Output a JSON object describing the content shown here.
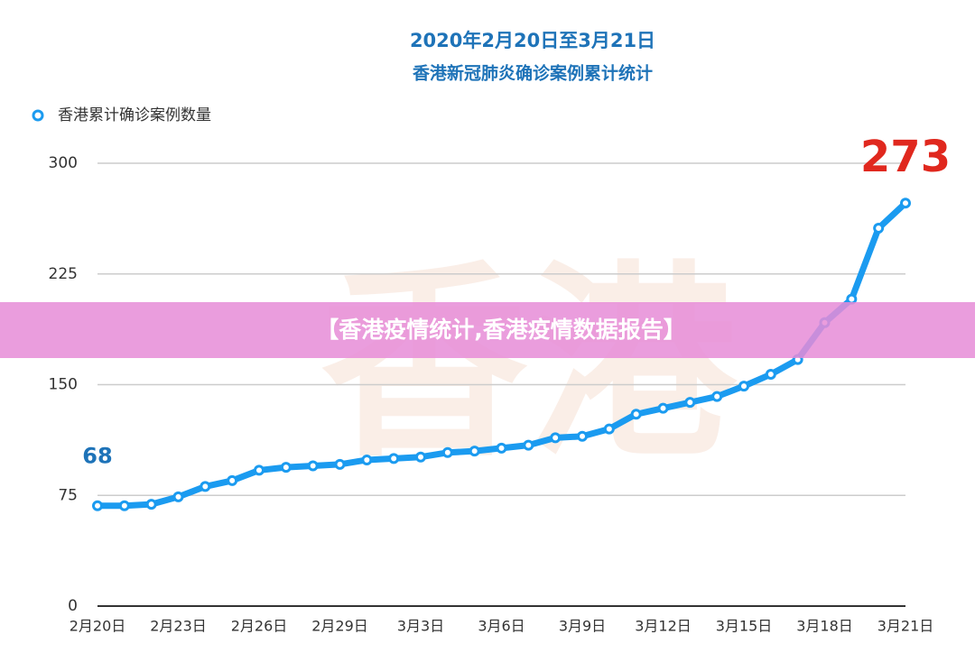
{
  "chart_data": {
    "type": "line",
    "title": "2020年2月20日至3月21日",
    "subtitle": "香港新冠肺炎确诊案例累计统计",
    "watermark": "香港",
    "categories": [
      "2月20日",
      null,
      null,
      "2月23日",
      null,
      null,
      "2月26日",
      null,
      null,
      "2月29日",
      null,
      null,
      "3月3日",
      null,
      null,
      "3月6日",
      null,
      null,
      "3月9日",
      null,
      null,
      "3月12日",
      null,
      null,
      "3月15日",
      null,
      null,
      "3月18日",
      null,
      null,
      "3月21日"
    ],
    "series": [
      {
        "name": "香港累计确诊案例数量",
        "color": "#1b9bf0",
        "values": [
          68,
          68,
          69,
          74,
          81,
          85,
          92,
          94,
          95,
          96,
          99,
          100,
          101,
          104,
          105,
          107,
          109,
          114,
          115,
          120,
          130,
          134,
          138,
          142,
          149,
          157,
          167,
          192,
          208,
          256,
          273
        ]
      }
    ],
    "ylim": [
      0,
      300
    ],
    "yticks": [
      0,
      75,
      150,
      225,
      300
    ],
    "grid": true,
    "legend": "top-left"
  },
  "banner": "【香港疫情统计,香港疫情数据报告】"
}
